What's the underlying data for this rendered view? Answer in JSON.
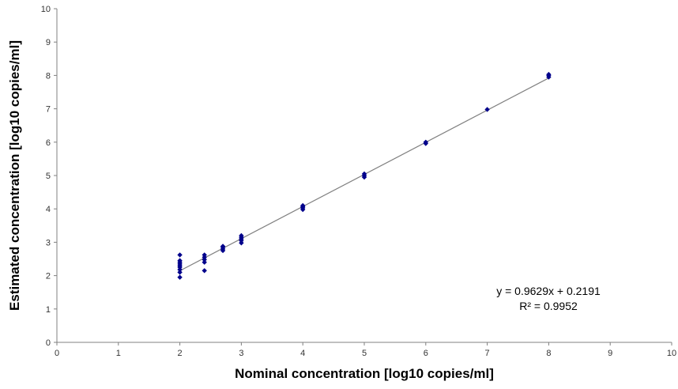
{
  "chart_data": {
    "type": "scatter",
    "title": "",
    "xlabel": "Nominal concentration [log10 copies/ml]",
    "ylabel": "Estimated concentration [log10 copies/ml]",
    "xlim": [
      0,
      10
    ],
    "ylim": [
      0,
      10
    ],
    "xticks": [
      "0",
      "1",
      "2",
      "3",
      "4",
      "5",
      "6",
      "7",
      "8",
      "9",
      "10"
    ],
    "yticks": [
      "0",
      "1",
      "2",
      "3",
      "4",
      "5",
      "6",
      "7",
      "8",
      "9",
      "10"
    ],
    "grid": false,
    "legend": "none",
    "series": [
      {
        "marker": "diamond",
        "color": "#00008B",
        "points": [
          [
            2,
            1.95
          ],
          [
            2,
            2.1
          ],
          [
            2,
            2.18
          ],
          [
            2,
            2.25
          ],
          [
            2,
            2.3
          ],
          [
            2,
            2.35
          ],
          [
            2,
            2.4
          ],
          [
            2,
            2.45
          ],
          [
            2,
            2.62
          ],
          [
            2.4,
            2.15
          ],
          [
            2.4,
            2.4
          ],
          [
            2.4,
            2.48
          ],
          [
            2.4,
            2.55
          ],
          [
            2.4,
            2.62
          ],
          [
            2.7,
            2.75
          ],
          [
            2.7,
            2.8
          ],
          [
            2.7,
            2.85
          ],
          [
            2.7,
            2.88
          ],
          [
            3,
            2.98
          ],
          [
            3,
            3.05
          ],
          [
            3,
            3.1
          ],
          [
            3,
            3.15
          ],
          [
            3,
            3.2
          ],
          [
            4,
            3.98
          ],
          [
            4,
            4.03
          ],
          [
            4,
            4.07
          ],
          [
            4,
            4.1
          ],
          [
            5,
            4.95
          ],
          [
            5,
            5.0
          ],
          [
            5,
            5.05
          ],
          [
            6,
            5.96
          ],
          [
            6,
            6.0
          ],
          [
            7,
            6.98
          ],
          [
            8,
            7.95
          ],
          [
            8,
            8.0
          ],
          [
            8,
            8.03
          ]
        ]
      }
    ],
    "trendline": {
      "slope": 0.9629,
      "intercept": 0.2191,
      "x_range": [
        2,
        8
      ],
      "color": "#808080",
      "equation_label": "y = 0.9629x + 0.2191",
      "r2_label": "R² = 0.9952"
    }
  }
}
